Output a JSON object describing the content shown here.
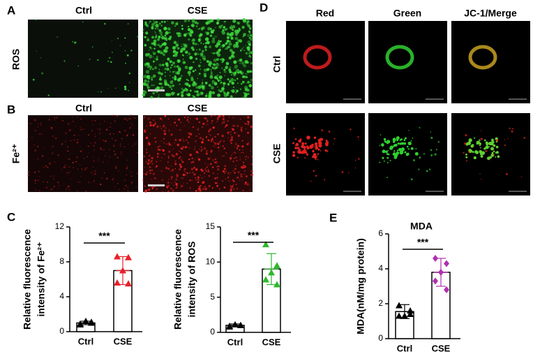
{
  "panel_labels": [
    "A",
    "B",
    "C",
    "D",
    "E"
  ],
  "panel_a": {
    "columns": [
      "Ctrl",
      "CSE"
    ],
    "row_label": "ROS"
  },
  "panel_b": {
    "columns": [
      "Ctrl",
      "CSE"
    ],
    "row_label": "Fe²⁺"
  },
  "panel_d": {
    "columns": [
      "Red",
      "Green",
      "JC-1/Merge"
    ],
    "rows": [
      "Ctrl",
      "CSE"
    ]
  },
  "chart_data": [
    {
      "type": "bar",
      "ylabel": [
        "Relative fluorescence",
        "intensity of Fe²⁺"
      ],
      "categories": [
        "Ctrl",
        "CSE"
      ],
      "values": [
        1.0,
        7.0
      ],
      "errors": [
        0.2,
        1.6
      ],
      "points": [
        [
          0.8,
          1.1,
          1.2,
          0.9,
          1.0
        ],
        [
          8.6,
          8.5,
          7.0,
          5.6,
          5.5
        ]
      ],
      "colors": [
        "#000000",
        "#e8202a"
      ],
      "markers": [
        "triangle",
        "triangle"
      ],
      "ylim": [
        0,
        12
      ],
      "yticks": [
        0,
        4,
        8,
        12
      ],
      "significance": "***"
    },
    {
      "type": "bar",
      "ylabel": [
        "Relative fluorescence",
        "intensity of ROS"
      ],
      "categories": [
        "Ctrl",
        "CSE"
      ],
      "values": [
        1.0,
        9.0
      ],
      "errors": [
        0.2,
        2.2
      ],
      "points": [
        [
          0.8,
          1.0,
          1.1,
          0.9,
          1.0
        ],
        [
          12.5,
          9.5,
          8.5,
          7.5,
          6.8
        ]
      ],
      "colors": [
        "#000000",
        "#2db82d"
      ],
      "markers": [
        "triangle",
        "triangle"
      ],
      "ylim": [
        0,
        15
      ],
      "yticks": [
        0,
        5,
        10,
        15
      ],
      "significance": "***"
    },
    {
      "type": "bar",
      "title": "MDA",
      "ylabel": [
        "MDA(nM/mg protein)"
      ],
      "categories": [
        "Ctrl",
        "CSE"
      ],
      "values": [
        1.55,
        3.8
      ],
      "errors": [
        0.4,
        0.8
      ],
      "points": [
        [
          1.9,
          1.6,
          1.3,
          1.3,
          1.4
        ],
        [
          4.6,
          4.3,
          3.8,
          3.3,
          2.8
        ]
      ],
      "colors": [
        "#000000",
        "#b030b0"
      ],
      "markers": [
        "triangle",
        "diamond"
      ],
      "ylim": [
        0,
        6
      ],
      "yticks": [
        0,
        2,
        4,
        6
      ],
      "significance": "***"
    }
  ]
}
